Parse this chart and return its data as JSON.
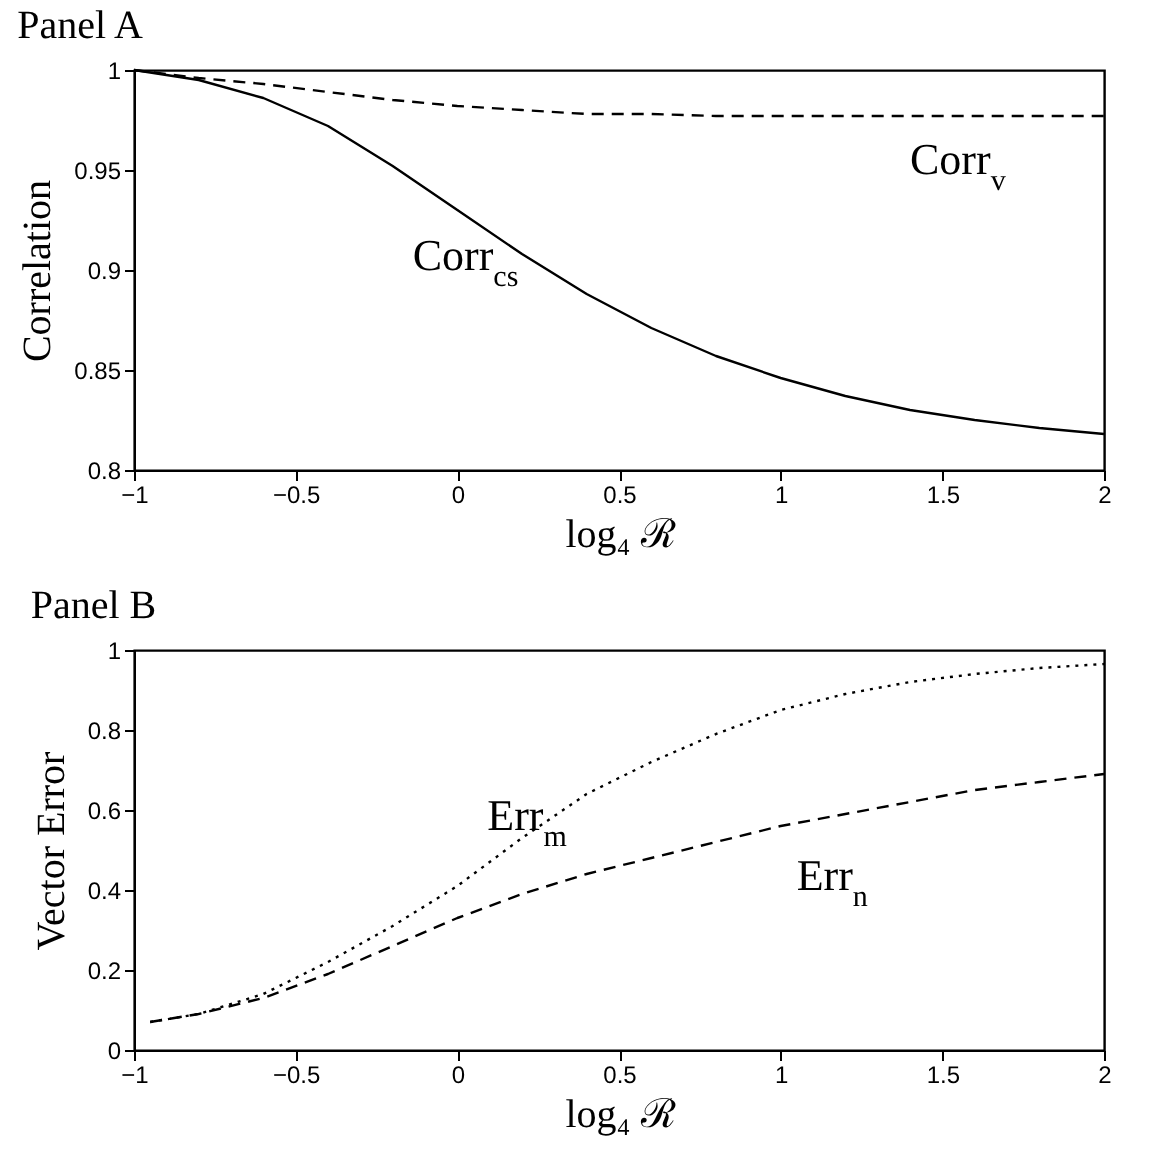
{
  "chart_data": [
    {
      "type": "line",
      "title": "Panel A",
      "xlabel": "log₄ ℛ",
      "ylabel": "Correlation",
      "xlim": [
        -1,
        2
      ],
      "xticks": [
        -1,
        -0.5,
        0,
        0.5,
        1,
        1.5,
        2
      ],
      "ylim": [
        0.8,
        1
      ],
      "yticks": [
        0.8,
        0.85,
        0.9,
        0.95,
        1
      ],
      "grid": false,
      "legend": false,
      "x": [
        -1,
        -0.8,
        -0.6,
        -0.4,
        -0.2,
        0,
        0.2,
        0.4,
        0.6,
        0.8,
        1,
        1.2,
        1.4,
        1.6,
        1.8,
        2
      ],
      "series": [
        {
          "name": "Corr$_{v}$",
          "color": "#000000",
          "line_style": "dashed",
          "values": [
            1,
            0.996,
            0.993,
            0.989,
            0.985,
            0.982,
            0.98,
            0.978,
            0.978,
            0.977,
            0.977,
            0.977,
            0.977,
            0.977,
            0.977,
            0.977
          ]
        },
        {
          "name": "Corr$_{cs}$",
          "color": "#000000",
          "line_style": "solid",
          "values": [
            1,
            0.995,
            0.986,
            0.972,
            0.952,
            0.93,
            0.908,
            0.888,
            0.871,
            0.857,
            0.846,
            0.837,
            0.83,
            0.825,
            0.821,
            0.818
          ]
        }
      ]
    },
    {
      "type": "line",
      "title": "Panel B",
      "xlabel": "log₄ ℛ",
      "ylabel": "Vector Error",
      "xlim": [
        -1,
        2
      ],
      "xticks": [
        -1,
        -0.5,
        0,
        0.5,
        1,
        1.5,
        2
      ],
      "ylim": [
        0,
        1
      ],
      "yticks": [
        0,
        0.2,
        0.4,
        0.6,
        0.8,
        1
      ],
      "grid": false,
      "legend": false,
      "x": [
        -0.95,
        -0.8,
        -0.6,
        -0.4,
        -0.2,
        0,
        0.2,
        0.4,
        0.6,
        0.8,
        1,
        1.2,
        1.4,
        1.6,
        1.8,
        2
      ],
      "series": [
        {
          "name": "Err$_{m}$",
          "color": "#000000",
          "line_style": "dotted",
          "values": [
            0.07,
            0.09,
            0.14,
            0.22,
            0.31,
            0.41,
            0.53,
            0.64,
            0.72,
            0.79,
            0.85,
            0.89,
            0.92,
            0.94,
            0.955,
            0.965
          ]
        },
        {
          "name": "Err$_{n}$",
          "color": "#000000",
          "line_style": "dashed",
          "values": [
            0.07,
            0.09,
            0.13,
            0.19,
            0.26,
            0.33,
            0.39,
            0.44,
            0.48,
            0.52,
            0.56,
            0.59,
            0.62,
            0.65,
            0.67,
            0.69
          ]
        }
      ]
    }
  ]
}
